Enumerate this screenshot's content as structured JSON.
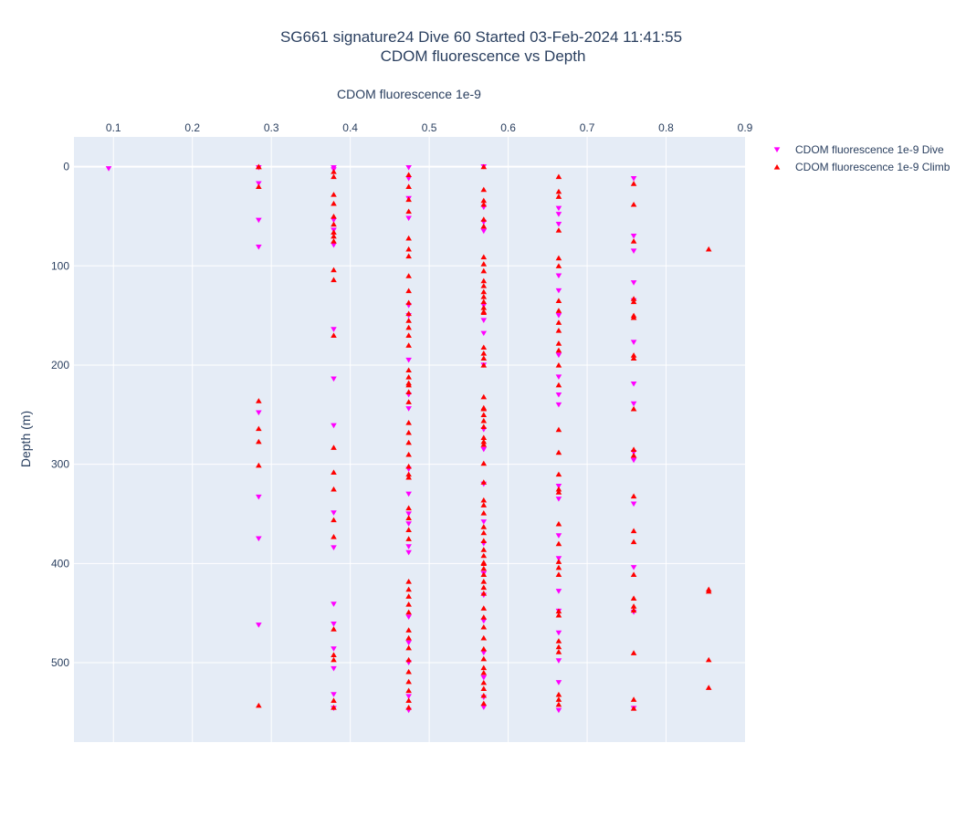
{
  "chart_data": {
    "type": "scatter",
    "title": "SG661 signature24 Dive 60 Started 03-Feb-2024 11:41:55",
    "subtitle": "CDOM fluorescence vs Depth",
    "xlabel": "CDOM fluorescence 1e-9",
    "ylabel": "Depth (m)",
    "x_axis_position": "top",
    "y_reversed": true,
    "xlim": [
      0.05,
      0.9
    ],
    "ylim": [
      -30,
      580
    ],
    "x_ticks": [
      0.1,
      0.2,
      0.3,
      0.4,
      0.5,
      0.6,
      0.7,
      0.8,
      0.9
    ],
    "y_ticks": [
      0,
      100,
      200,
      300,
      400,
      500
    ],
    "grid": true,
    "legend_position": "top-right",
    "colors": {
      "plot_bg": "#e5ecf6",
      "grid": "#ffffff",
      "text": "#2a3f5f"
    },
    "series": [
      {
        "name": "CDOM fluorescence 1e-9 Dive",
        "marker": "triangle-down",
        "color": "#ff00ff",
        "x": [
          0.094,
          0.284,
          0.284,
          0.284,
          0.284,
          0.284,
          0.284,
          0.284,
          0.284,
          0.379,
          0.379,
          0.379,
          0.379,
          0.379,
          0.379,
          0.379,
          0.379,
          0.379,
          0.379,
          0.379,
          0.379,
          0.379,
          0.379,
          0.379,
          0.379,
          0.474,
          0.474,
          0.474,
          0.474,
          0.474,
          0.474,
          0.474,
          0.474,
          0.474,
          0.474,
          0.474,
          0.474,
          0.474,
          0.474,
          0.474,
          0.474,
          0.474,
          0.474,
          0.474,
          0.474,
          0.569,
          0.569,
          0.569,
          0.569,
          0.569,
          0.569,
          0.569,
          0.569,
          0.569,
          0.569,
          0.569,
          0.569,
          0.569,
          0.569,
          0.569,
          0.569,
          0.569,
          0.569,
          0.569,
          0.569,
          0.664,
          0.664,
          0.664,
          0.664,
          0.664,
          0.664,
          0.664,
          0.664,
          0.664,
          0.664,
          0.664,
          0.664,
          0.664,
          0.664,
          0.664,
          0.664,
          0.664,
          0.664,
          0.664,
          0.664,
          0.759,
          0.759,
          0.759,
          0.759,
          0.759,
          0.759,
          0.759,
          0.759,
          0.759,
          0.759,
          0.759,
          0.759,
          0.759,
          0.759
        ],
        "y": [
          2,
          1,
          17,
          54,
          81,
          248,
          333,
          375,
          462,
          1,
          3,
          164,
          214,
          261,
          349,
          384,
          441,
          461,
          486,
          506,
          532,
          546,
          54,
          64,
          79,
          1,
          32,
          52,
          140,
          150,
          195,
          230,
          244,
          305,
          330,
          350,
          360,
          383,
          389,
          454,
          480,
          500,
          534,
          548,
          12,
          0,
          41,
          56,
          65,
          140,
          155,
          168,
          200,
          265,
          285,
          320,
          358,
          380,
          410,
          432,
          458,
          490,
          515,
          535,
          545,
          42,
          48,
          58,
          110,
          125,
          150,
          190,
          212,
          230,
          240,
          322,
          335,
          372,
          395,
          428,
          448,
          470,
          498,
          520,
          548,
          12,
          70,
          85,
          117,
          177,
          219,
          239,
          296,
          340,
          404,
          449,
          546,
          135,
          288
        ]
      },
      {
        "name": "CDOM fluorescence 1e-9 Climb",
        "marker": "triangle-up",
        "color": "#ff0000",
        "x": [
          0.284,
          0.284,
          0.284,
          0.284,
          0.284,
          0.284,
          0.284,
          0.284,
          0.379,
          0.379,
          0.379,
          0.379,
          0.379,
          0.379,
          0.379,
          0.379,
          0.379,
          0.379,
          0.379,
          0.379,
          0.379,
          0.379,
          0.379,
          0.379,
          0.379,
          0.379,
          0.379,
          0.379,
          0.379,
          0.379,
          0.474,
          0.474,
          0.474,
          0.474,
          0.474,
          0.474,
          0.474,
          0.474,
          0.474,
          0.474,
          0.474,
          0.474,
          0.474,
          0.474,
          0.474,
          0.474,
          0.474,
          0.474,
          0.474,
          0.474,
          0.474,
          0.474,
          0.474,
          0.474,
          0.474,
          0.474,
          0.474,
          0.474,
          0.474,
          0.474,
          0.474,
          0.474,
          0.474,
          0.474,
          0.474,
          0.474,
          0.474,
          0.474,
          0.474,
          0.474,
          0.474,
          0.474,
          0.474,
          0.474,
          0.474,
          0.474,
          0.569,
          0.569,
          0.569,
          0.569,
          0.569,
          0.569,
          0.569,
          0.569,
          0.569,
          0.569,
          0.569,
          0.569,
          0.569,
          0.569,
          0.569,
          0.569,
          0.569,
          0.569,
          0.569,
          0.569,
          0.569,
          0.569,
          0.569,
          0.569,
          0.569,
          0.569,
          0.569,
          0.569,
          0.569,
          0.569,
          0.569,
          0.569,
          0.569,
          0.569,
          0.569,
          0.569,
          0.569,
          0.569,
          0.569,
          0.569,
          0.569,
          0.569,
          0.569,
          0.569,
          0.569,
          0.569,
          0.569,
          0.569,
          0.569,
          0.569,
          0.569,
          0.569,
          0.569,
          0.569,
          0.569,
          0.569,
          0.569,
          0.569,
          0.569,
          0.664,
          0.664,
          0.664,
          0.664,
          0.664,
          0.664,
          0.664,
          0.664,
          0.664,
          0.664,
          0.664,
          0.664,
          0.664,
          0.664,
          0.664,
          0.664,
          0.664,
          0.664,
          0.664,
          0.664,
          0.664,
          0.664,
          0.664,
          0.664,
          0.664,
          0.664,
          0.664,
          0.664,
          0.664,
          0.664,
          0.664,
          0.664,
          0.759,
          0.759,
          0.759,
          0.759,
          0.759,
          0.759,
          0.759,
          0.759,
          0.759,
          0.759,
          0.759,
          0.759,
          0.759,
          0.759,
          0.759,
          0.759,
          0.759,
          0.759,
          0.759,
          0.759,
          0.759,
          0.759,
          0.854,
          0.854,
          0.854,
          0.854,
          0.854
        ],
        "y": [
          0,
          20,
          236,
          264,
          277,
          301,
          543,
          0,
          5,
          10,
          28,
          37,
          50,
          58,
          66,
          70,
          75,
          104,
          114,
          170,
          283,
          308,
          325,
          356,
          373,
          466,
          492,
          497,
          538,
          545,
          8,
          20,
          33,
          45,
          72,
          83,
          90,
          110,
          125,
          137,
          148,
          155,
          162,
          170,
          180,
          205,
          212,
          220,
          227,
          237,
          258,
          268,
          278,
          290,
          302,
          313,
          344,
          354,
          366,
          375,
          418,
          426,
          433,
          441,
          449,
          467,
          475,
          485,
          497,
          509,
          519,
          528,
          538,
          545,
          310,
          218,
          0,
          23,
          34,
          38,
          53,
          60,
          91,
          98,
          105,
          115,
          120,
          126,
          131,
          136,
          142,
          147,
          182,
          188,
          193,
          200,
          232,
          243,
          250,
          256,
          262,
          273,
          280,
          299,
          318,
          336,
          341,
          349,
          363,
          369,
          377,
          386,
          392,
          399,
          405,
          411,
          418,
          424,
          430,
          445,
          454,
          464,
          475,
          486,
          496,
          505,
          510,
          520,
          526,
          533,
          541,
          277,
          244,
          146,
          400,
          10,
          25,
          30,
          64,
          92,
          100,
          135,
          145,
          157,
          165,
          178,
          185,
          200,
          220,
          265,
          288,
          310,
          325,
          328,
          360,
          380,
          398,
          404,
          411,
          448,
          452,
          478,
          484,
          489,
          532,
          537,
          542,
          17,
          38,
          75,
          133,
          150,
          190,
          244,
          285,
          291,
          332,
          367,
          378,
          411,
          435,
          443,
          447,
          490,
          537,
          546,
          136,
          193,
          152,
          83,
          426,
          428,
          497,
          525
        ]
      }
    ]
  }
}
